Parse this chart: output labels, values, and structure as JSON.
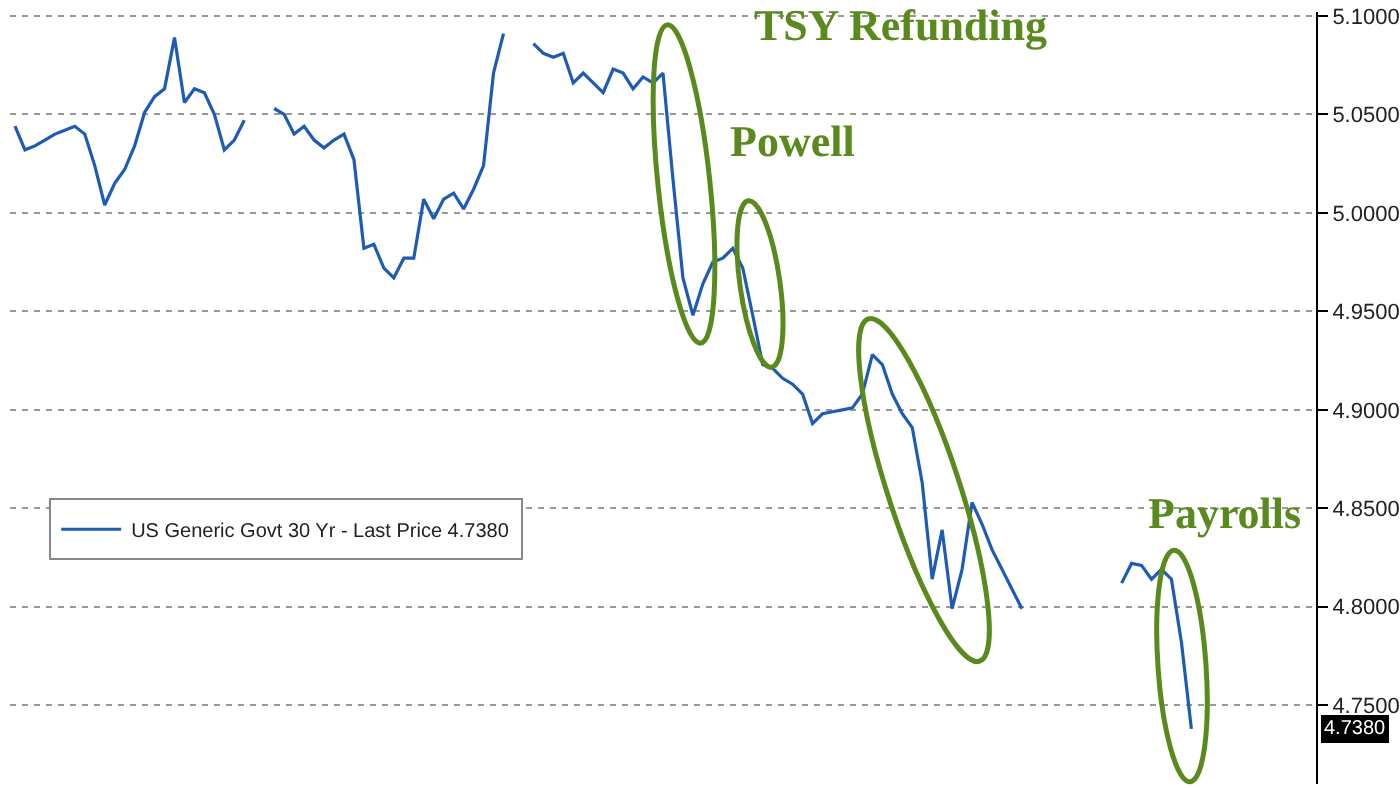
{
  "chart_data": {
    "type": "line",
    "categories": [
      null,
      null,
      null,
      null,
      null,
      null,
      null,
      null,
      null,
      null,
      null,
      null,
      null,
      null,
      null,
      null,
      null,
      null,
      null,
      null,
      null,
      null,
      null,
      null,
      null,
      null,
      null,
      null,
      null,
      null,
      null,
      null,
      null,
      null,
      null,
      null,
      null,
      null,
      null,
      null,
      null,
      null,
      null,
      null,
      null,
      null,
      null,
      null,
      null,
      null,
      null,
      null,
      null,
      null,
      null,
      null,
      null,
      null,
      null,
      null,
      null,
      null,
      null,
      null,
      null,
      null,
      null,
      null,
      null,
      null,
      null,
      null,
      null,
      null,
      null,
      null,
      null,
      null,
      null,
      null,
      null,
      null,
      null,
      null,
      null,
      null,
      null,
      null,
      null,
      null,
      null,
      null,
      null,
      null,
      null,
      null,
      null,
      null,
      null,
      null,
      null,
      null,
      null,
      null,
      null,
      null,
      null,
      null,
      null,
      null,
      null,
      null,
      null,
      null,
      null,
      null,
      null,
      null,
      null,
      null,
      null,
      null,
      null,
      null,
      null,
      null,
      null,
      null,
      null,
      null,
      null
    ],
    "series": [
      {
        "name": "US Generic Govt 30 Yr - Last Price 4.7380",
        "color": "#1d5bb5",
        "values": [
          5.044,
          5.032,
          5.034,
          5.037,
          5.04,
          5.042,
          5.044,
          5.04,
          5.024,
          5.004,
          5.015,
          5.022,
          5.034,
          5.051,
          5.059,
          5.063,
          5.089,
          5.056,
          5.063,
          5.061,
          5.05,
          5.032,
          5.037,
          5.047,
          null,
          null,
          5.053,
          5.05,
          5.04,
          5.044,
          5.037,
          5.033,
          5.037,
          5.04,
          5.027,
          4.982,
          4.984,
          4.972,
          4.967,
          4.977,
          4.977,
          5.007,
          4.997,
          5.007,
          5.01,
          5.002,
          5.012,
          5.024,
          5.071,
          5.091,
          null,
          null,
          5.086,
          5.081,
          5.079,
          5.081,
          5.066,
          5.071,
          5.066,
          5.061,
          5.073,
          5.071,
          5.063,
          5.069,
          5.066,
          5.071,
          5.017,
          4.967,
          4.948,
          4.964,
          4.975,
          4.977,
          4.982,
          4.972,
          4.948,
          4.923,
          4.921,
          4.916,
          4.913,
          4.908,
          4.893,
          4.898,
          4.899,
          4.9,
          4.901,
          4.908,
          4.928,
          4.923,
          4.908,
          4.898,
          4.891,
          4.863,
          4.814,
          4.839,
          4.799,
          4.819,
          4.853,
          4.842,
          4.829,
          4.819,
          4.809,
          4.799,
          null,
          null,
          null,
          null,
          null,
          null,
          null,
          null,
          null,
          4.812,
          4.822,
          4.821,
          4.814,
          4.819,
          4.814,
          4.782,
          4.738,
          null,
          null,
          null,
          null,
          null,
          null,
          null,
          null,
          null,
          null,
          null,
          null
        ]
      }
    ],
    "ylim": [
      4.71,
      5.102
    ],
    "yticks": [
      {
        "value": 4.75,
        "label": "4.7500"
      },
      {
        "value": 4.8,
        "label": "4.8000"
      },
      {
        "value": 4.85,
        "label": "4.8500"
      },
      {
        "value": 4.9,
        "label": "4.9000"
      },
      {
        "value": 4.95,
        "label": "4.9500"
      },
      {
        "value": 5.0,
        "label": "5.0000"
      },
      {
        "value": 5.05,
        "label": "5.0500"
      },
      {
        "value": 5.1,
        "label": "5.1000"
      }
    ],
    "grid": "y",
    "legend": "left",
    "marker": "none",
    "line_style": "solid",
    "annotations": [
      "TSY Refunding",
      "Powell",
      "Payrolls",
      {
        "text": "4.7380",
        "y": 4.738
      }
    ]
  }
}
